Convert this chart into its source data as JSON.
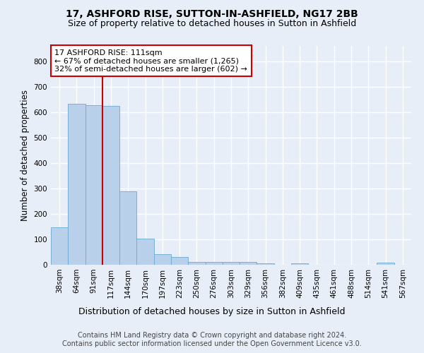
{
  "title": "17, ASHFORD RISE, SUTTON-IN-ASHFIELD, NG17 2BB",
  "subtitle": "Size of property relative to detached houses in Sutton in Ashfield",
  "xlabel": "Distribution of detached houses by size in Sutton in Ashfield",
  "ylabel": "Number of detached properties",
  "footer_line1": "Contains HM Land Registry data © Crown copyright and database right 2024.",
  "footer_line2": "Contains public sector information licensed under the Open Government Licence v3.0.",
  "categories": [
    "38sqm",
    "64sqm",
    "91sqm",
    "117sqm",
    "144sqm",
    "170sqm",
    "197sqm",
    "223sqm",
    "250sqm",
    "276sqm",
    "303sqm",
    "329sqm",
    "356sqm",
    "382sqm",
    "409sqm",
    "435sqm",
    "461sqm",
    "488sqm",
    "514sqm",
    "541sqm",
    "567sqm"
  ],
  "values": [
    148,
    633,
    628,
    625,
    288,
    103,
    43,
    30,
    12,
    10,
    10,
    10,
    5,
    0,
    5,
    0,
    0,
    0,
    0,
    8,
    0
  ],
  "bar_color": "#b8d0ea",
  "bar_edge_color": "#6aaad4",
  "vline_x": 2.5,
  "vline_color": "#cc0000",
  "annotation_text": "17 ASHFORD RISE: 111sqm\n← 67% of detached houses are smaller (1,265)\n32% of semi-detached houses are larger (602) →",
  "annotation_box_color": "#ffffff",
  "annotation_box_edge_color": "#cc0000",
  "ylim": [
    0,
    860
  ],
  "yticks": [
    0,
    100,
    200,
    300,
    400,
    500,
    600,
    700,
    800
  ],
  "background_color": "#e8eef8",
  "plot_bg_color": "#e8eef8",
  "grid_color": "#ffffff",
  "title_fontsize": 10,
  "subtitle_fontsize": 9,
  "ylabel_fontsize": 8.5,
  "xlabel_fontsize": 9,
  "tick_fontsize": 7.5,
  "annotation_fontsize": 8,
  "footer_fontsize": 7
}
